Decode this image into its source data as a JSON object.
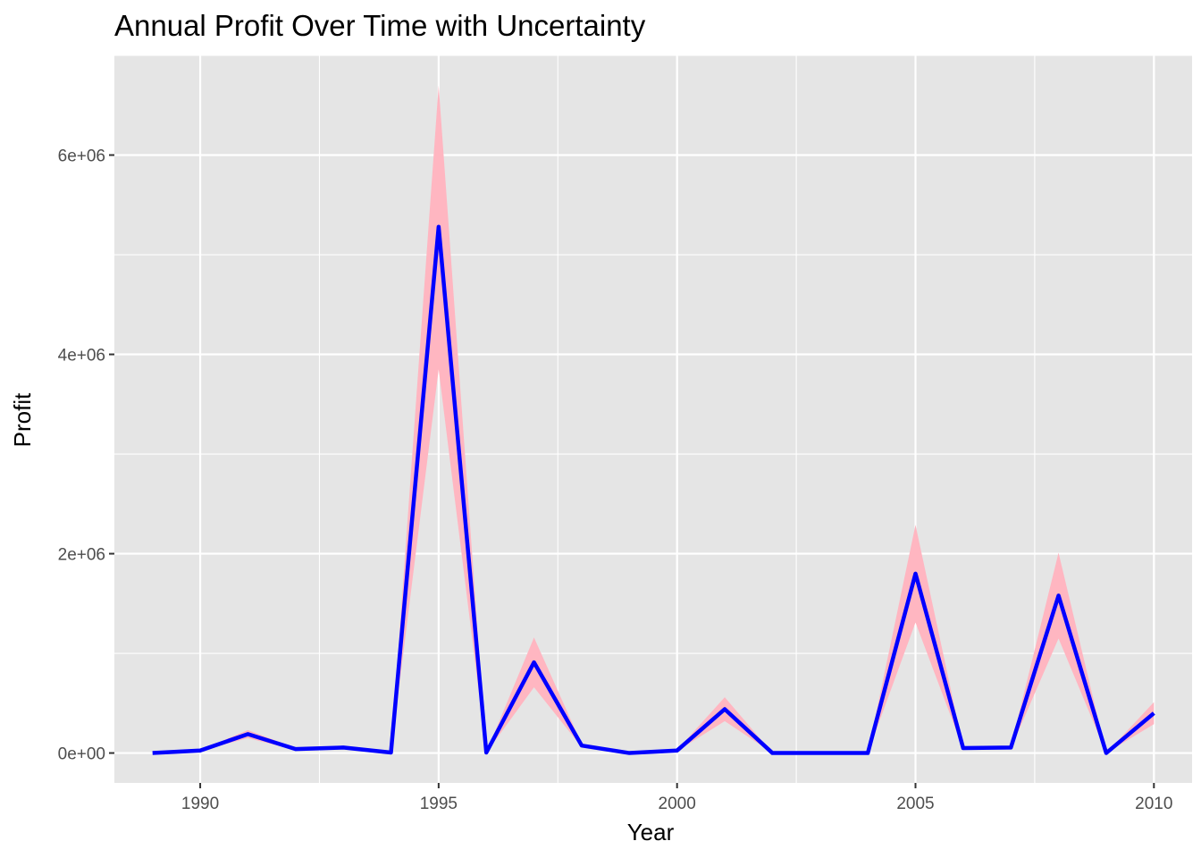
{
  "chart_data": {
    "type": "line",
    "title": "Annual Profit Over Time with Uncertainty",
    "xlabel": "Year",
    "ylabel": "Profit",
    "xlim": [
      1988.2,
      2010.8
    ],
    "ylim": [
      -300000,
      7000000
    ],
    "x_ticks": [
      1990,
      1995,
      2000,
      2005,
      2010
    ],
    "x_tick_labels": [
      "1990",
      "1995",
      "2000",
      "2005",
      "2010"
    ],
    "y_ticks": [
      0,
      2000000,
      4000000,
      6000000
    ],
    "y_tick_labels": [
      "0e+00",
      "2e+06",
      "4e+06",
      "6e+06"
    ],
    "grid": true,
    "background": "#e5e5e5",
    "line_color": "#0000ff",
    "ribbon_color": "#ffb6c1",
    "series": [
      {
        "x": [
          1989,
          1990,
          1991,
          1992,
          1993,
          1994,
          1995,
          1996,
          1997,
          1998,
          1999,
          2000,
          2001,
          2002,
          2003,
          2004,
          2005,
          2006,
          2007,
          2008,
          2009,
          2010
        ],
        "values": [
          0,
          25000,
          190000,
          40000,
          55000,
          5000,
          5280000,
          5000,
          910000,
          75000,
          0,
          25000,
          440000,
          0,
          0,
          0,
          1800000,
          50000,
          55000,
          1580000,
          0,
          400000
        ],
        "lower": [
          0,
          20000,
          150000,
          30000,
          45000,
          4000,
          3850000,
          4000,
          660000,
          60000,
          0,
          20000,
          320000,
          0,
          0,
          0,
          1310000,
          40000,
          45000,
          1150000,
          0,
          290000
        ],
        "upper": [
          0,
          30000,
          230000,
          50000,
          65000,
          6000,
          6700000,
          6000,
          1160000,
          90000,
          0,
          30000,
          560000,
          0,
          0,
          0,
          2290000,
          60000,
          65000,
          2010000,
          0,
          510000
        ]
      }
    ]
  }
}
